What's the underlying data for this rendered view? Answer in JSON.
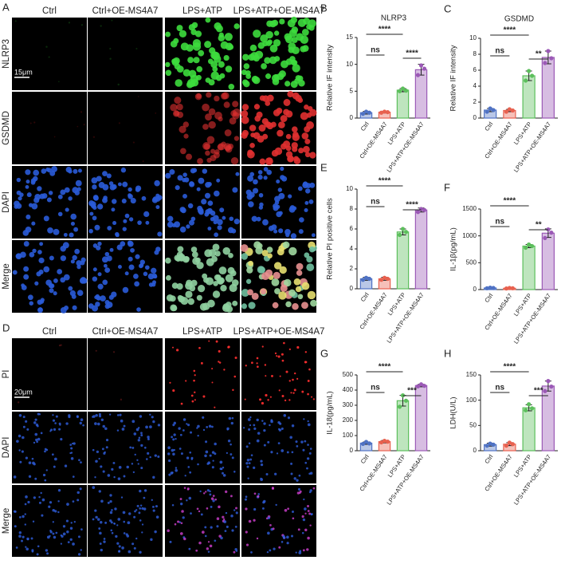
{
  "panels": [
    {
      "label": "A",
      "columns": [
        "Ctrl",
        "Ctrl+OE-MS4A7",
        "LPS+ATP",
        "LPS+ATP+OE-MS4A7"
      ],
      "rows": [
        "NLRP3",
        "GSDMD",
        "DAPI",
        "Merge"
      ],
      "scale_bar": "15μm"
    },
    {
      "label": "D",
      "columns": [
        "Ctrl",
        "Ctrl+OE-MS4A7",
        "LPS+ATP",
        "LPS+ATP+OE-MS4A7"
      ],
      "rows": [
        "PI",
        "DAPI",
        "Merge"
      ],
      "scale_bar": "20μm"
    }
  ],
  "chart_data": [
    {
      "type": "bar",
      "panel_label": "B",
      "title": "NLRP3",
      "y_label": "Relative IF intensity",
      "categories": [
        "Ctrl",
        "Ctrl+OE-MS4A7",
        "LPS+ATP",
        "LPS+ATP+OE-MS4A7"
      ],
      "values": [
        1.0,
        1.1,
        5.2,
        9.0
      ],
      "errors": [
        0.25,
        0.15,
        0.3,
        1.0
      ],
      "points": [
        [
          0.8,
          1.2,
          1.0
        ],
        [
          1.0,
          1.2,
          1.1
        ],
        [
          5.0,
          5.5,
          5.1
        ],
        [
          8.0,
          9.8,
          9.2
        ]
      ],
      "colors": [
        "#4f72c4",
        "#e8614f",
        "#5cbf5c",
        "#9b59b6"
      ],
      "ylim": [
        0,
        15
      ],
      "yticks": [
        0,
        5,
        10,
        15
      ],
      "comparisons": [
        {
          "groups": [
            "Ctrl",
            "LPS+ATP"
          ],
          "label": "****"
        },
        {
          "groups": [
            "Ctrl",
            "Ctrl+OE-MS4A7"
          ],
          "label": "ns"
        },
        {
          "groups": [
            "LPS+ATP",
            "LPS+ATP+OE-MS4A7"
          ],
          "label": "****"
        }
      ]
    },
    {
      "type": "bar",
      "panel_label": "C",
      "title": "GSDMD",
      "y_label": "Relative IF intensity",
      "categories": [
        "Ctrl",
        "Ctrl+OE-MS4A7",
        "LPS+ATP",
        "LPS+ATP+OE-MS4A7"
      ],
      "values": [
        1.0,
        0.95,
        5.3,
        7.6
      ],
      "errors": [
        0.2,
        0.15,
        0.6,
        0.8
      ],
      "points": [
        [
          0.8,
          1.2,
          1.0
        ],
        [
          0.8,
          1.1,
          0.95
        ],
        [
          4.7,
          5.9,
          5.3
        ],
        [
          6.9,
          8.4,
          7.5
        ]
      ],
      "colors": [
        "#4f72c4",
        "#e8614f",
        "#5cbf5c",
        "#9b59b6"
      ],
      "ylim": [
        0,
        10
      ],
      "yticks": [
        0,
        2,
        4,
        6,
        8,
        10
      ],
      "comparisons": [
        {
          "groups": [
            "Ctrl",
            "LPS+ATP"
          ],
          "label": "****"
        },
        {
          "groups": [
            "Ctrl",
            "Ctrl+OE-MS4A7"
          ],
          "label": "ns"
        },
        {
          "groups": [
            "LPS+ATP",
            "LPS+ATP+OE-MS4A7"
          ],
          "label": "**"
        }
      ]
    },
    {
      "type": "bar",
      "panel_label": "E",
      "y_label": "Relative PI positive cells",
      "categories": [
        "Ctrl",
        "Ctrl+OE-MS4A7",
        "LPS+ATP",
        "LPS+ATP+OE-MS4A7"
      ],
      "values": [
        1.0,
        1.0,
        5.7,
        7.9
      ],
      "errors": [
        0.15,
        0.15,
        0.3,
        0.2
      ],
      "points": [
        [
          0.9,
          1.1,
          1.0
        ],
        [
          0.9,
          1.1,
          1.0
        ],
        [
          5.4,
          6.0,
          5.7
        ],
        [
          7.7,
          8.0,
          7.9
        ]
      ],
      "colors": [
        "#4f72c4",
        "#e8614f",
        "#5cbf5c",
        "#9b59b6"
      ],
      "ylim": [
        0,
        10
      ],
      "yticks": [
        0,
        2,
        4,
        6,
        8,
        10
      ],
      "comparisons": [
        {
          "groups": [
            "Ctrl",
            "LPS+ATP"
          ],
          "label": "****"
        },
        {
          "groups": [
            "Ctrl",
            "Ctrl+OE-MS4A7"
          ],
          "label": "ns"
        },
        {
          "groups": [
            "LPS+ATP",
            "LPS+ATP+OE-MS4A7"
          ],
          "label": "****"
        }
      ]
    },
    {
      "type": "bar",
      "panel_label": "F",
      "y_label": "IL-1β(pg/mL)",
      "categories": [
        "Ctrl",
        "Ctrl+OE-MS4A7",
        "LPS+ATP",
        "LPS+ATP+OE-MS4A7"
      ],
      "values": [
        30,
        25,
        810,
        1050
      ],
      "errors": [
        8,
        8,
        30,
        80
      ],
      "points": [
        [
          25,
          35,
          30
        ],
        [
          20,
          30,
          25
        ],
        [
          780,
          840,
          810
        ],
        [
          960,
          1120,
          1060
        ]
      ],
      "colors": [
        "#4f72c4",
        "#e8614f",
        "#5cbf5c",
        "#9b59b6"
      ],
      "ylim": [
        0,
        1500
      ],
      "yticks": [
        0,
        500,
        1000,
        1500
      ],
      "comparisons": [
        {
          "groups": [
            "Ctrl",
            "LPS+ATP"
          ],
          "label": "****"
        },
        {
          "groups": [
            "Ctrl",
            "Ctrl+OE-MS4A7"
          ],
          "label": "ns"
        },
        {
          "groups": [
            "LPS+ATP",
            "LPS+ATP+OE-MS4A7"
          ],
          "label": "**"
        }
      ]
    },
    {
      "type": "bar",
      "panel_label": "G",
      "y_label": "IL-18(pg/mL)",
      "categories": [
        "Ctrl",
        "Ctrl+OE-MS4A7",
        "LPS+ATP",
        "LPS+ATP+OE-MS4A7"
      ],
      "values": [
        50,
        60,
        330,
        430
      ],
      "errors": [
        8,
        8,
        35,
        8
      ],
      "points": [
        [
          45,
          58,
          48
        ],
        [
          55,
          65,
          60
        ],
        [
          290,
          365,
          330
        ],
        [
          425,
          438,
          428
        ]
      ],
      "colors": [
        "#4f72c4",
        "#e8614f",
        "#5cbf5c",
        "#9b59b6"
      ],
      "ylim": [
        0,
        500
      ],
      "yticks": [
        0,
        100,
        200,
        300,
        400,
        500
      ],
      "comparisons": [
        {
          "groups": [
            "Ctrl",
            "LPS+ATP"
          ],
          "label": "****"
        },
        {
          "groups": [
            "Ctrl",
            "Ctrl+OE-MS4A7"
          ],
          "label": "ns"
        },
        {
          "groups": [
            "LPS+ATP",
            "LPS+ATP+OE-MS4A7"
          ],
          "label": "***"
        }
      ]
    },
    {
      "type": "bar",
      "panel_label": "H",
      "y_label": "LDH(U/L)",
      "categories": [
        "Ctrl",
        "Ctrl+OE-MS4A7",
        "LPS+ATP",
        "LPS+ATP+OE-MS4A7"
      ],
      "values": [
        12,
        13,
        85,
        128
      ],
      "errors": [
        3,
        3,
        6,
        10
      ],
      "points": [
        [
          10,
          14,
          12
        ],
        [
          10,
          16,
          13
        ],
        [
          80,
          92,
          84
        ],
        [
          118,
          138,
          127
        ]
      ],
      "colors": [
        "#4f72c4",
        "#e8614f",
        "#5cbf5c",
        "#9b59b6"
      ],
      "ylim": [
        0,
        150
      ],
      "yticks": [
        0,
        50,
        100,
        150
      ],
      "comparisons": [
        {
          "groups": [
            "Ctrl",
            "LPS+ATP"
          ],
          "label": "****"
        },
        {
          "groups": [
            "Ctrl",
            "Ctrl+OE-MS4A7"
          ],
          "label": "ns"
        },
        {
          "groups": [
            "LPS+ATP",
            "LPS+ATP+OE-MS4A7"
          ],
          "label": "***"
        }
      ]
    }
  ]
}
